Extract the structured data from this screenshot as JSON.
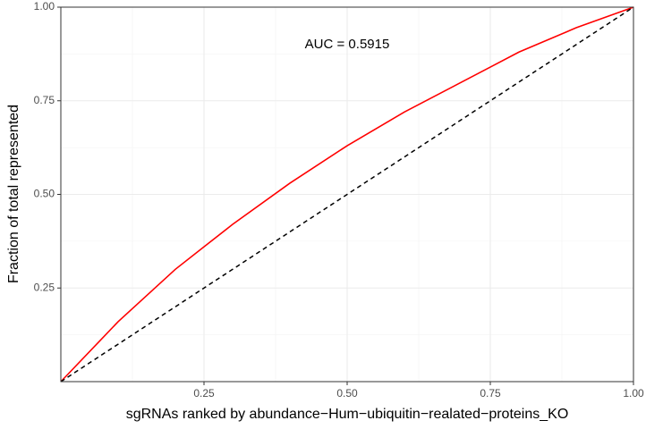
{
  "chart_data": {
    "type": "line",
    "xlabel": "sgRNAs ranked by abundance−Hum−ubiquitin−realated−proteins_KO",
    "ylabel": "Fraction of total represented",
    "annotation": "AUC = 0.5915",
    "xlim": [
      0,
      1
    ],
    "ylim": [
      0,
      1
    ],
    "xticks": [
      0.25,
      {
        "value": 0.5,
        "label": "0.50"
      },
      0.75,
      {
        "value": 1,
        "label": "1.00"
      }
    ],
    "yticks": [
      0.25,
      {
        "value": 0.5,
        "label": "0.50"
      },
      0.75,
      {
        "value": 1,
        "label": "1.00"
      }
    ],
    "grid": true,
    "series": [
      {
        "color": "#ff0000",
        "dash": false,
        "x": [
          0,
          0.1,
          0.2,
          0.25,
          0.3,
          0.4,
          0.5,
          0.6,
          0.7,
          0.75,
          0.8,
          0.9,
          1
        ],
        "values": [
          0,
          0.16,
          0.3,
          0.36,
          0.42,
          0.53,
          0.63,
          0.72,
          0.8,
          0.84,
          0.88,
          0.945,
          1
        ]
      },
      {
        "color": "#000000",
        "dash": true,
        "x": [
          0,
          1
        ],
        "values": [
          0,
          1
        ]
      }
    ]
  }
}
